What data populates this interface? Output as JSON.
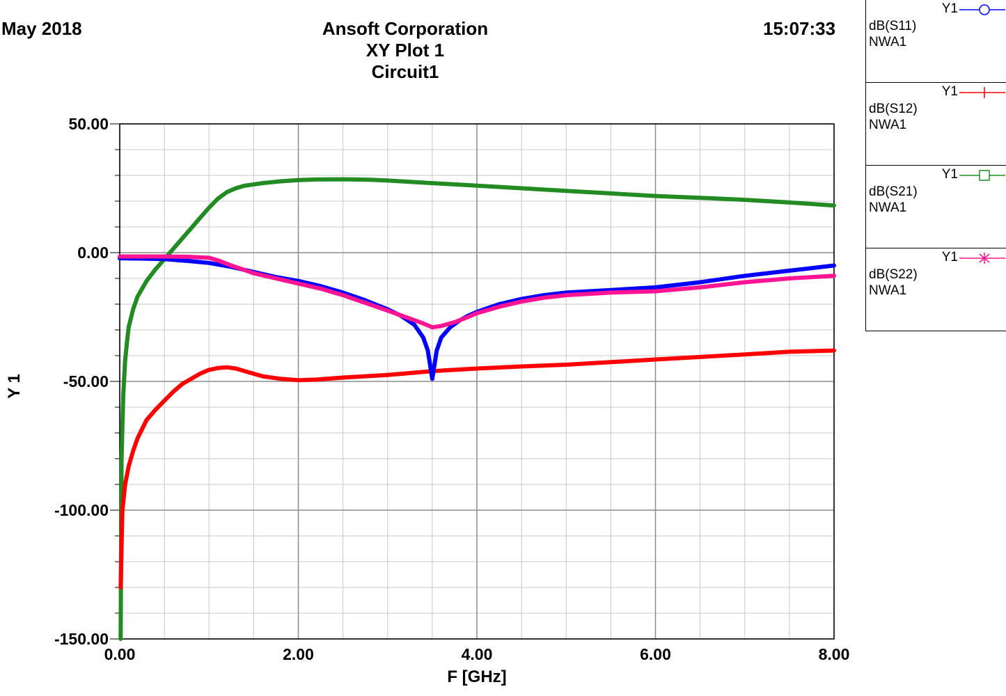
{
  "header": {
    "date": "May 2018",
    "company": "Ansoft Corporation",
    "plot_name": "XY Plot 1",
    "circuit": "Circuit1",
    "time": "15:07:33"
  },
  "chart_data": {
    "type": "line",
    "xlabel": "F [GHz]",
    "ylabel": "Y 1",
    "xlim": [
      0,
      8
    ],
    "ylim": [
      -150,
      50
    ],
    "xticks": [
      0,
      2,
      4,
      6,
      8
    ],
    "xtick_labels": [
      "0.00",
      "2.00",
      "4.00",
      "6.00",
      "8.00"
    ],
    "yticks": [
      50,
      0,
      -50,
      -100,
      -150
    ],
    "ytick_labels": [
      "50.00",
      "0.00",
      "-50.00",
      "-100.00",
      "-150.00"
    ],
    "grid": true,
    "minor_grid": {
      "x_step": 0.5,
      "y_step": 10
    },
    "legend_placement": "right",
    "series": [
      {
        "name": "dB(S11)",
        "axis": "Y1",
        "source": "NWA1",
        "color": "#0000ff",
        "marker": "circle",
        "x": [
          0.0,
          0.25,
          0.5,
          0.75,
          1.0,
          1.25,
          1.5,
          1.75,
          2.0,
          2.25,
          2.5,
          2.75,
          3.0,
          3.15,
          3.3,
          3.4,
          3.45,
          3.5,
          3.55,
          3.6,
          3.7,
          3.8,
          3.9,
          4.0,
          4.25,
          4.5,
          4.75,
          5.0,
          5.5,
          6.0,
          6.5,
          7.0,
          7.5,
          8.0
        ],
        "y": [
          -2.2,
          -2.3,
          -2.5,
          -3.2,
          -4.0,
          -5.5,
          -7.5,
          -9.5,
          -11.0,
          -13.0,
          -15.5,
          -18.5,
          -22.0,
          -24.5,
          -28.0,
          -33.0,
          -38.0,
          -49.0,
          -38.0,
          -33.0,
          -29.0,
          -26.5,
          -24.5,
          -23.0,
          -20.0,
          -18.0,
          -16.5,
          -15.5,
          -14.5,
          -13.5,
          -11.5,
          -9.0,
          -7.0,
          -5.0
        ]
      },
      {
        "name": "dB(S12)",
        "axis": "Y1",
        "source": "NWA1",
        "color": "#ff0000",
        "marker": "plus",
        "x": [
          0.01,
          0.03,
          0.06,
          0.1,
          0.15,
          0.2,
          0.3,
          0.4,
          0.5,
          0.6,
          0.7,
          0.8,
          0.9,
          1.0,
          1.1,
          1.2,
          1.3,
          1.4,
          1.6,
          1.8,
          2.0,
          2.2,
          2.5,
          3.0,
          3.5,
          4.0,
          4.5,
          5.0,
          5.5,
          6.0,
          6.5,
          7.0,
          7.5,
          8.0
        ],
        "y": [
          -130.0,
          -100.0,
          -90.0,
          -83.0,
          -77.0,
          -72.0,
          -65.0,
          -61.0,
          -57.5,
          -54.0,
          -51.0,
          -49.0,
          -47.0,
          -45.5,
          -44.8,
          -44.5,
          -45.0,
          -46.0,
          -48.0,
          -49.0,
          -49.5,
          -49.3,
          -48.5,
          -47.5,
          -46.0,
          -45.0,
          -44.2,
          -43.5,
          -42.5,
          -41.5,
          -40.5,
          -39.5,
          -38.5,
          -38.0
        ]
      },
      {
        "name": "dB(S21)",
        "axis": "Y1",
        "source": "NWA1",
        "color": "#228b22",
        "marker": "square",
        "x": [
          0.01,
          0.02,
          0.04,
          0.06,
          0.08,
          0.1,
          0.15,
          0.2,
          0.3,
          0.4,
          0.5,
          0.6,
          0.7,
          0.8,
          0.9,
          1.0,
          1.1,
          1.2,
          1.3,
          1.4,
          1.6,
          1.8,
          2.0,
          2.2,
          2.5,
          2.8,
          3.0,
          3.5,
          4.0,
          4.5,
          5.0,
          5.5,
          6.0,
          6.5,
          7.0,
          7.5,
          8.0
        ],
        "y": [
          -150.0,
          -80.0,
          -55.0,
          -42.0,
          -35.0,
          -29.0,
          -22.0,
          -17.0,
          -11.0,
          -6.5,
          -2.5,
          1.5,
          5.5,
          9.5,
          13.5,
          17.5,
          21.0,
          23.5,
          25.0,
          26.0,
          27.0,
          27.7,
          28.2,
          28.4,
          28.5,
          28.3,
          28.0,
          27.0,
          26.0,
          25.0,
          24.0,
          23.0,
          22.0,
          21.3,
          20.5,
          19.5,
          18.3
        ]
      },
      {
        "name": "dB(S22)",
        "axis": "Y1",
        "source": "NWA1",
        "color": "#ff1493",
        "marker": "star",
        "x": [
          0.0,
          0.25,
          0.5,
          0.75,
          1.0,
          1.1,
          1.25,
          1.5,
          1.75,
          2.0,
          2.25,
          2.5,
          2.75,
          3.0,
          3.2,
          3.4,
          3.5,
          3.6,
          3.75,
          3.9,
          4.0,
          4.25,
          4.5,
          4.75,
          5.0,
          5.5,
          6.0,
          6.5,
          7.0,
          7.5,
          8.0
        ],
        "y": [
          -1.5,
          -1.5,
          -1.5,
          -1.6,
          -2.0,
          -3.0,
          -5.0,
          -8.0,
          -10.0,
          -12.0,
          -14.0,
          -16.5,
          -19.5,
          -22.5,
          -25.0,
          -27.5,
          -29.0,
          -28.5,
          -27.0,
          -25.0,
          -23.5,
          -21.0,
          -19.0,
          -17.5,
          -16.5,
          -15.5,
          -15.0,
          -13.5,
          -11.5,
          -10.0,
          -9.0
        ]
      }
    ]
  }
}
